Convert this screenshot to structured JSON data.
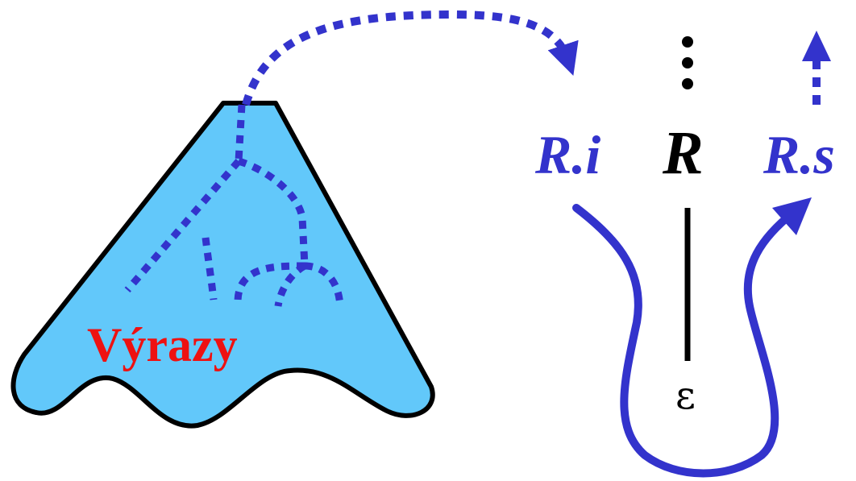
{
  "diagram": {
    "region_label": "Výrazy",
    "nonterminal": "R",
    "inherited_attr": "R.i",
    "synthesized_attr": "R.s",
    "epsilon": "ε",
    "colors": {
      "region_fill": "#62c8fa",
      "region_stroke": "#000000",
      "flow": "#3333cc",
      "label_red": "#ee1111"
    }
  }
}
